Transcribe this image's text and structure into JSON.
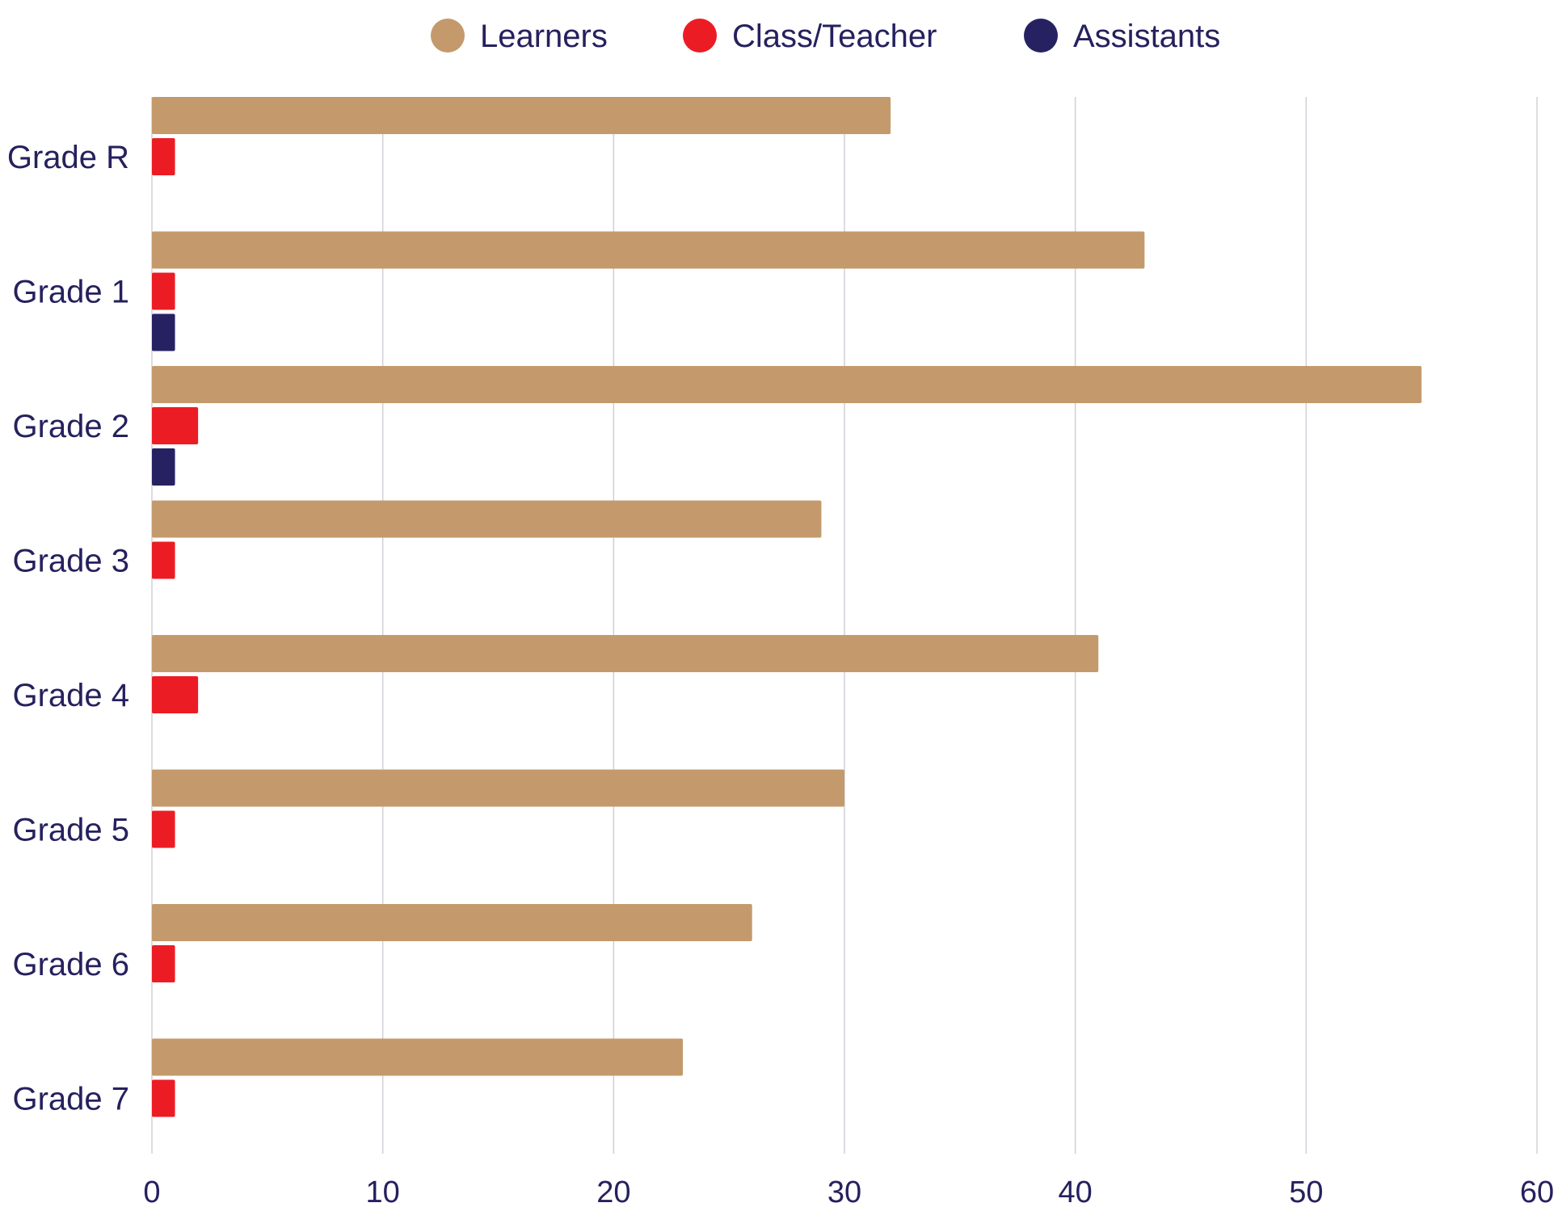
{
  "chart_data": {
    "type": "bar",
    "orientation": "horizontal",
    "categories": [
      "Grade R",
      "Grade 1",
      "Grade 2",
      "Grade 3",
      "Grade 4",
      "Grade 5",
      "Grade 6",
      "Grade 7"
    ],
    "series": [
      {
        "name": "Learners",
        "color": "#c49a6c",
        "values": [
          32,
          43,
          55,
          29,
          41,
          30,
          26,
          23
        ]
      },
      {
        "name": "Class/Teacher",
        "color": "#ec1c24",
        "values": [
          1,
          1,
          2,
          1,
          2,
          1,
          1,
          1
        ]
      },
      {
        "name": "Assistants",
        "color": "#262262",
        "values": [
          0,
          1,
          1,
          0,
          0,
          0,
          0,
          0
        ]
      }
    ],
    "xlim": [
      0,
      60
    ],
    "xticks": [
      0,
      10,
      20,
      30,
      40,
      50,
      60
    ],
    "title": "",
    "xlabel": "",
    "ylabel": "",
    "grid": "vertical",
    "legend": "top-center"
  }
}
